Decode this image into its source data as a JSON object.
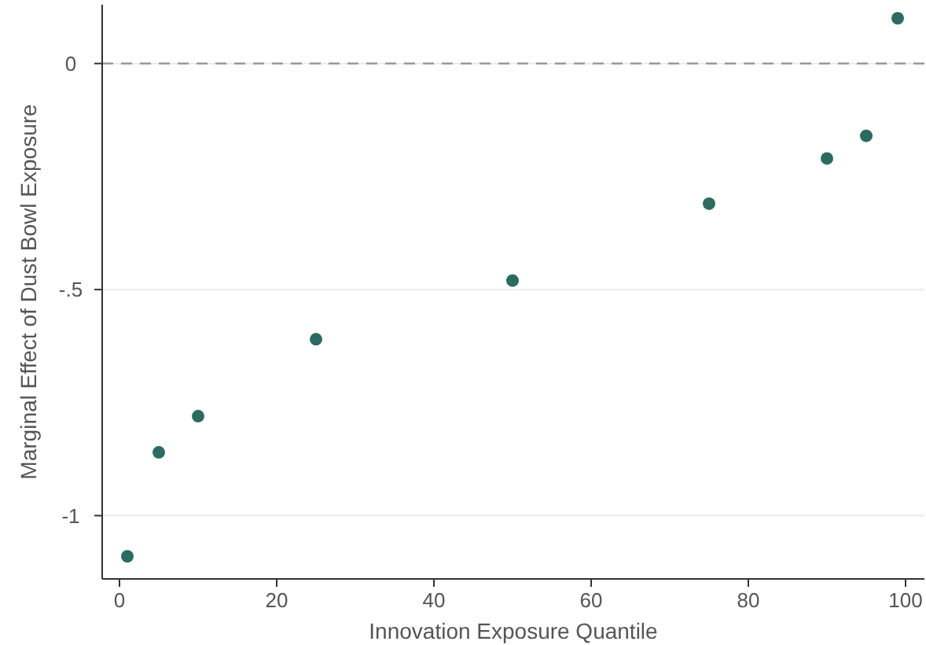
{
  "chart_data": {
    "type": "scatter",
    "xlabel": "Innovation Exposure Quantile",
    "ylabel": "Marginal Effect of Dust Bowl Exposure",
    "x": [
      1,
      5,
      10,
      25,
      50,
      75,
      90,
      95,
      99
    ],
    "series": [
      {
        "color": "#2b6b61",
        "values": [
          -1.09,
          -0.86,
          -0.78,
          -0.61,
          -0.48,
          -0.31,
          -0.21,
          -0.16,
          0.1
        ]
      }
    ],
    "xlim": [
      -2.2,
      102.4
    ],
    "ylim": [
      -1.14,
      0.13
    ],
    "xticks": [
      0,
      20,
      40,
      60,
      80,
      100
    ],
    "yticks": [
      {
        "value": -1,
        "label": "-1"
      },
      {
        "value": -0.5,
        "label": "-.5"
      },
      0
    ],
    "grid": "y",
    "marker": "circle",
    "ref_lines": [
      {
        "axis": "y",
        "value": 0,
        "color": "#999999",
        "line_style": "dashed"
      }
    ]
  }
}
